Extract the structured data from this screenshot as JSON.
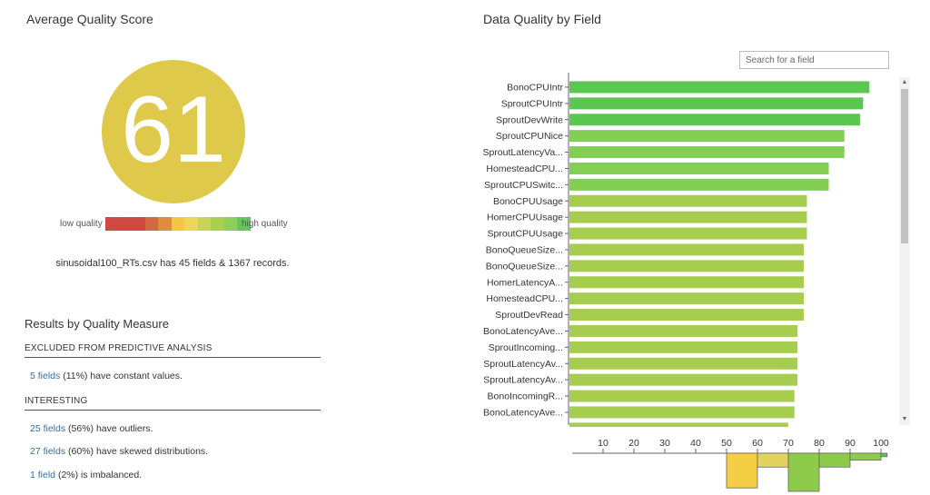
{
  "left": {
    "title": "Average Quality Score",
    "score": "61",
    "legend_low": "low quality",
    "legend_high": "high quality",
    "scale_colors": [
      "#d04a43",
      "#d04a43",
      "#d04a43",
      "#d36a3f",
      "#e08c3d",
      "#f0c642",
      "#ecd65a",
      "#c8d158",
      "#a9cf4f",
      "#8bd05a",
      "#5fc95a"
    ],
    "summary": "sinusoidal100_RTs.csv has 45 fields & 1367 records.",
    "results_title": "Results by Quality Measure",
    "excluded_heading": "EXCLUDED FROM PREDICTIVE ANALYSIS",
    "excluded_link": "5 fields",
    "excluded_text": " (11%) have constant values.",
    "interesting_heading": "INTERESTING",
    "measures": [
      {
        "link": "25 fields",
        "text": " (56%) have outliers."
      },
      {
        "link": "27 fields",
        "text": " (60%) have skewed distributions."
      },
      {
        "link": "1 field",
        "text": " (2%) is imbalanced."
      }
    ]
  },
  "right": {
    "title": "Data Quality by Field",
    "search_placeholder": "Search for a field"
  },
  "chart_data": [
    {
      "type": "bar",
      "orientation": "horizontal",
      "title": "Data Quality by Field",
      "xlim": [
        0,
        100
      ],
      "categories": [
        "BonoCPUIntr",
        "SproutCPUIntr",
        "SproutDevWrite",
        "SproutCPUNice",
        "SproutLatencyVa...",
        "HomesteadCPU...",
        "SproutCPUSwitc...",
        "BonoCPUUsage",
        "HomerCPUUsage",
        "SproutCPUUsage",
        "BonoQueueSize...",
        "BonoQueueSize...",
        "HomerLatencyA...",
        "HomesteadCPU...",
        "SproutDevRead",
        "BonoLatencyAve...",
        "SproutIncoming...",
        "SproutLatencyAv...",
        "SproutLatencyAv...",
        "BonoIncomingR...",
        "BonoLatencyAve...",
        ""
      ],
      "values": [
        96,
        94,
        93,
        88,
        88,
        83,
        83,
        76,
        76,
        76,
        75,
        75,
        75,
        75,
        75,
        73,
        73,
        73,
        73,
        72,
        72,
        70
      ],
      "colors": [
        "#5ac750",
        "#5ac750",
        "#5ac750",
        "#82cf52",
        "#82cf52",
        "#82cf52",
        "#82cf52",
        "#a7cd4f",
        "#a7cd4f",
        "#a7cd4f",
        "#a7cd4f",
        "#a7cd4f",
        "#a7cd4f",
        "#a7cd4f",
        "#a7cd4f",
        "#a7cd4f",
        "#a7cd4f",
        "#a7cd4f",
        "#a7cd4f",
        "#a7cd4f",
        "#a7cd4f",
        "#a7cd4f"
      ]
    },
    {
      "type": "bar",
      "title": "",
      "x_ticks": [
        10,
        20,
        30,
        40,
        50,
        60,
        70,
        80,
        90,
        100
      ],
      "xlim": [
        0,
        100
      ],
      "bins": [
        {
          "start": 50,
          "end": 60,
          "value": 10,
          "color": "#f4cf45"
        },
        {
          "start": 60,
          "end": 70,
          "value": 4,
          "color": "#e2d25e"
        },
        {
          "start": 70,
          "end": 80,
          "value": 11,
          "color": "#8fcb4b"
        },
        {
          "start": 80,
          "end": 90,
          "value": 4,
          "color": "#8fcb4b"
        },
        {
          "start": 90,
          "end": 100,
          "value": 2,
          "color": "#8fcb4b"
        },
        {
          "start": 100,
          "end": 102,
          "value": 1,
          "color": "#5ac750"
        }
      ]
    }
  ]
}
